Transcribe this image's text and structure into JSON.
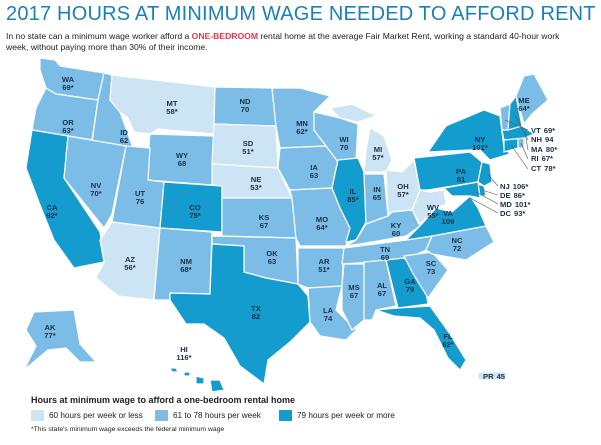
{
  "title": "2017 HOURS AT MINIMUM WAGE NEEDED TO AFFORD RENT",
  "subtitle": {
    "part1": "In no state can a minimum wage worker afford a ",
    "highlight": "ONE-BEDROOM",
    "part2": " rental home at the average Fair Market Rent, working a standard 40-hour work week, without paying more than 30% of their income."
  },
  "colors": {
    "light": "#cce4f3",
    "mid": "#7bbde7",
    "dark": "#159ccf",
    "title": "#1b80b8",
    "highlight": "#e8364f"
  },
  "states": [
    {
      "abbr": "WA",
      "value": "69*"
    },
    {
      "abbr": "OR",
      "value": "63*"
    },
    {
      "abbr": "CA",
      "value": "92*"
    },
    {
      "abbr": "ID",
      "value": "62"
    },
    {
      "abbr": "NV",
      "value": "70*"
    },
    {
      "abbr": "MT",
      "value": "58*"
    },
    {
      "abbr": "WY",
      "value": "68"
    },
    {
      "abbr": "UT",
      "value": "76"
    },
    {
      "abbr": "AZ",
      "value": "56*"
    },
    {
      "abbr": "CO",
      "value": "75*"
    },
    {
      "abbr": "NM",
      "value": "68*"
    },
    {
      "abbr": "ND",
      "value": "70"
    },
    {
      "abbr": "SD",
      "value": "51*"
    },
    {
      "abbr": "NE",
      "value": "53*"
    },
    {
      "abbr": "KS",
      "value": "67"
    },
    {
      "abbr": "OK",
      "value": "63"
    },
    {
      "abbr": "TX",
      "value": "82"
    },
    {
      "abbr": "MN",
      "value": "62*"
    },
    {
      "abbr": "IA",
      "value": "63"
    },
    {
      "abbr": "MO",
      "value": "64*"
    },
    {
      "abbr": "AR",
      "value": "51*"
    },
    {
      "abbr": "LA",
      "value": "74"
    },
    {
      "abbr": "WI",
      "value": "70"
    },
    {
      "abbr": "IL",
      "value": "85*"
    },
    {
      "abbr": "MI",
      "value": "57*"
    },
    {
      "abbr": "IN",
      "value": "65"
    },
    {
      "abbr": "OH",
      "value": "57*"
    },
    {
      "abbr": "KY",
      "value": "60"
    },
    {
      "abbr": "TN",
      "value": "69"
    },
    {
      "abbr": "MS",
      "value": "67"
    },
    {
      "abbr": "AL",
      "value": "67"
    },
    {
      "abbr": "GA",
      "value": "79"
    },
    {
      "abbr": "FL",
      "value": "82*"
    },
    {
      "abbr": "SC",
      "value": "73"
    },
    {
      "abbr": "NC",
      "value": "72"
    },
    {
      "abbr": "VA",
      "value": "109"
    },
    {
      "abbr": "WV",
      "value": "55*"
    },
    {
      "abbr": "PA",
      "value": "81"
    },
    {
      "abbr": "NY",
      "value": "101*"
    },
    {
      "abbr": "ME",
      "value": "64*"
    },
    {
      "abbr": "AK",
      "value": "77*"
    },
    {
      "abbr": "HI",
      "value": "116*"
    },
    {
      "abbr": "PR",
      "value": "45"
    }
  ],
  "side_labels": [
    {
      "abbr": "VT",
      "value": "69*"
    },
    {
      "abbr": "NH",
      "value": "94"
    },
    {
      "abbr": "MA",
      "value": "80*"
    },
    {
      "abbr": "RI",
      "value": "67*"
    },
    {
      "abbr": "CT",
      "value": "78*"
    },
    {
      "abbr": "NJ",
      "value": "106*"
    },
    {
      "abbr": "DE",
      "value": "86*"
    },
    {
      "abbr": "MD",
      "value": "101*"
    },
    {
      "abbr": "DC",
      "value": "93*"
    }
  ],
  "legend": {
    "title": "Hours at minimum wage to afford a one-bedroom rental home",
    "items": [
      "60 hours per week or less",
      "61 to 78 hours per week",
      "79 hours per week or more"
    ]
  },
  "footnote": "*This state's minimum wage exceeds the federal minimum wage"
}
